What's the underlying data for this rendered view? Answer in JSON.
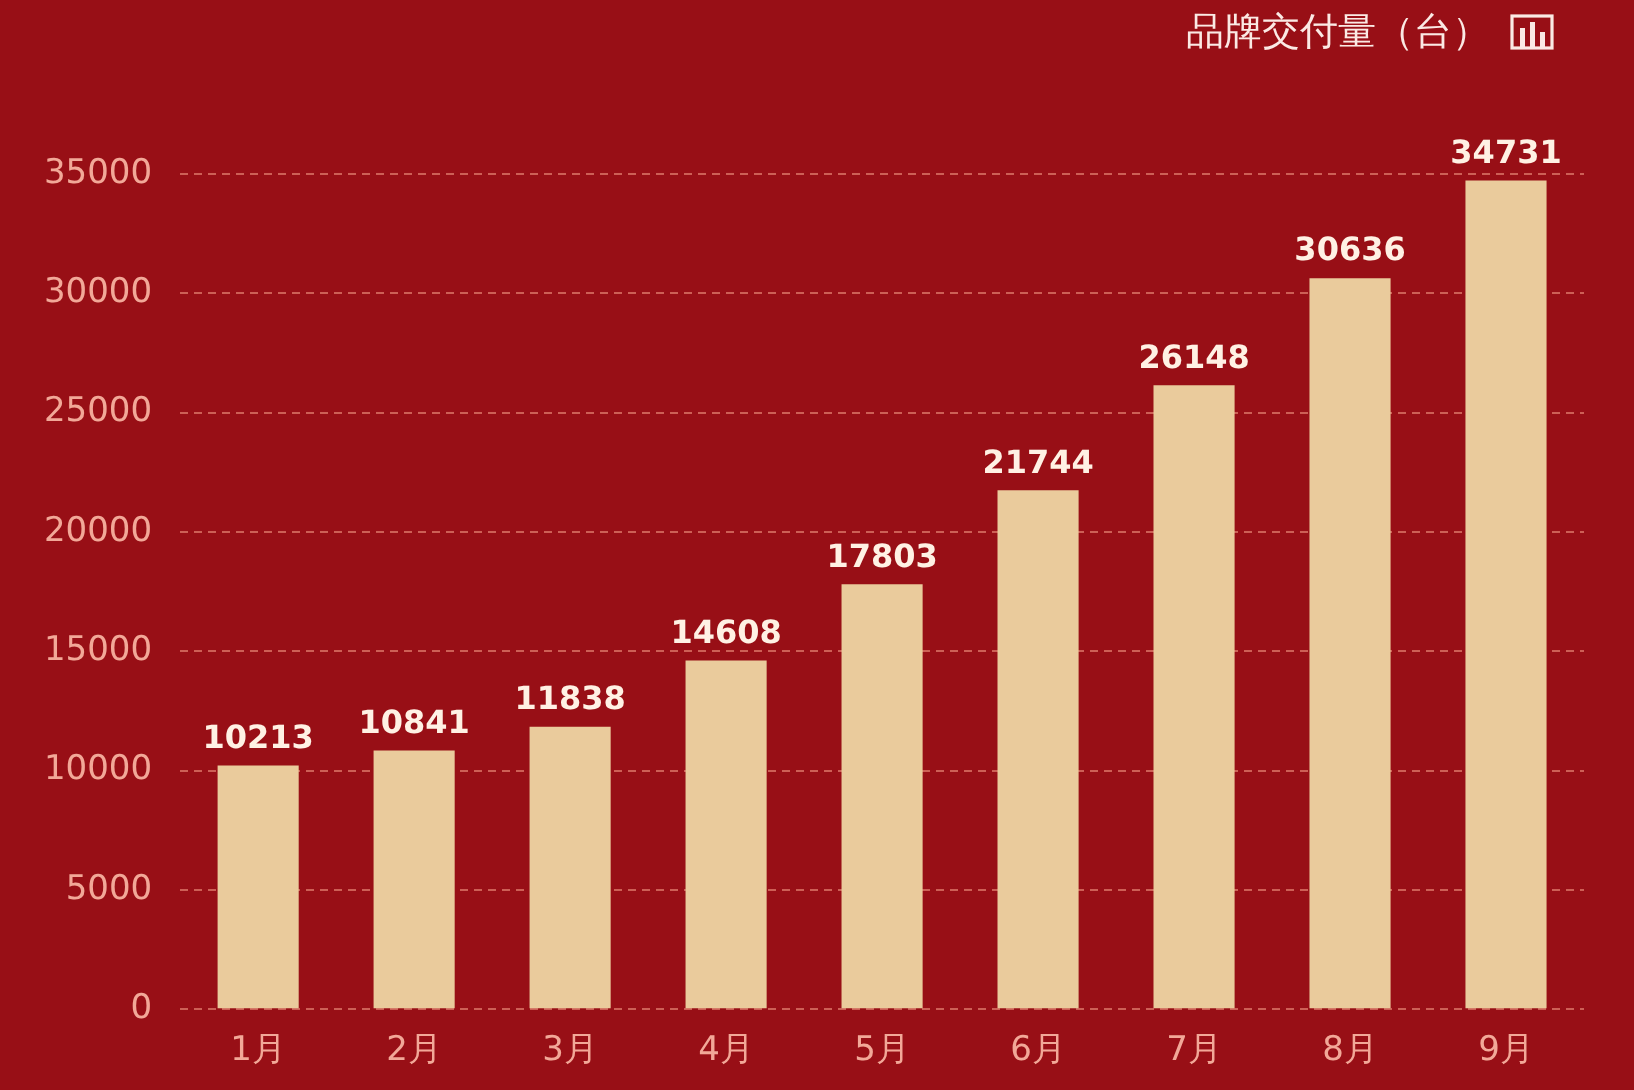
{
  "chart_data": {
    "type": "bar",
    "title": "品牌交付量（台）",
    "categories": [
      "1月",
      "2月",
      "3月",
      "4月",
      "5月",
      "6月",
      "7月",
      "8月",
      "9月"
    ],
    "values": [
      10213,
      10841,
      11838,
      14608,
      17803,
      21744,
      26148,
      30636,
      34731
    ],
    "color": "#eacb9c",
    "ylim": [
      0,
      35000
    ],
    "yticks": [
      0,
      5000,
      10000,
      15000,
      20000,
      25000,
      30000,
      35000
    ],
    "grid": "y",
    "data_labels": true
  }
}
